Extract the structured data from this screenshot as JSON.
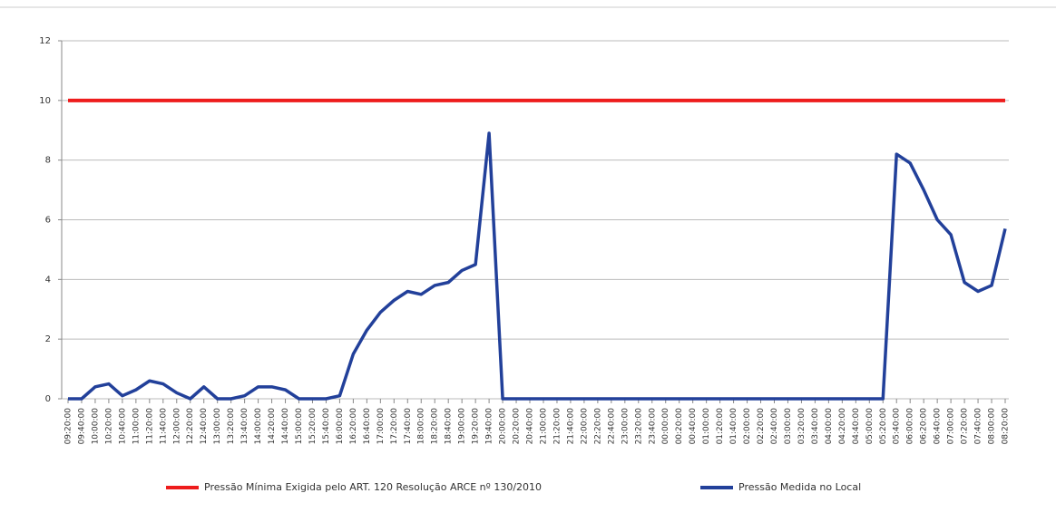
{
  "chart_data": {
    "type": "line",
    "categories": [
      "09:20:00",
      "09:40:00",
      "10:00:00",
      "10:20:00",
      "10:40:00",
      "11:00:00",
      "11:20:00",
      "11:40:00",
      "12:00:00",
      "12:20:00",
      "12:40:00",
      "13:00:00",
      "13:20:00",
      "13:40:00",
      "14:00:00",
      "14:20:00",
      "14:40:00",
      "15:00:00",
      "15:20:00",
      "15:40:00",
      "16:00:00",
      "16:20:00",
      "16:40:00",
      "17:00:00",
      "17:20:00",
      "17:40:00",
      "18:00:00",
      "18:20:00",
      "18:40:00",
      "19:00:00",
      "19:20:00",
      "19:40:00",
      "20:00:00",
      "20:20:00",
      "20:40:00",
      "21:00:00",
      "21:20:00",
      "21:40:00",
      "22:00:00",
      "22:20:00",
      "22:40:00",
      "23:00:00",
      "23:20:00",
      "23:40:00",
      "00:00:00",
      "00:20:00",
      "00:40:00",
      "01:00:00",
      "01:20:00",
      "01:40:00",
      "02:00:00",
      "02:20:00",
      "02:40:00",
      "03:00:00",
      "03:20:00",
      "03:40:00",
      "04:00:00",
      "04:20:00",
      "04:40:00",
      "05:00:00",
      "05:20:00",
      "05:40:00",
      "06:00:00",
      "06:20:00",
      "06:40:00",
      "07:00:00",
      "07:20:00",
      "07:40:00",
      "08:00:00",
      "08:20:00"
    ],
    "series": [
      {
        "name": "Pressão Mínima Exigida pelo ART. 120 Resolução ARCE nº 130/2010",
        "color": "#ee1c1c",
        "values": [
          10,
          10,
          10,
          10,
          10,
          10,
          10,
          10,
          10,
          10,
          10,
          10,
          10,
          10,
          10,
          10,
          10,
          10,
          10,
          10,
          10,
          10,
          10,
          10,
          10,
          10,
          10,
          10,
          10,
          10,
          10,
          10,
          10,
          10,
          10,
          10,
          10,
          10,
          10,
          10,
          10,
          10,
          10,
          10,
          10,
          10,
          10,
          10,
          10,
          10,
          10,
          10,
          10,
          10,
          10,
          10,
          10,
          10,
          10,
          10,
          10,
          10,
          10,
          10,
          10,
          10,
          10,
          10,
          10,
          10
        ]
      },
      {
        "name": "Pressão Medida no Local",
        "color": "#22409a",
        "values": [
          0,
          0,
          0.4,
          0.5,
          0.1,
          0.3,
          0.6,
          0.5,
          0.2,
          0,
          0.4,
          0,
          0,
          0.1,
          0.4,
          0.4,
          0.3,
          0,
          0,
          0,
          0.1,
          1.5,
          2.3,
          2.9,
          3.3,
          3.6,
          3.5,
          3.8,
          3.9,
          4.3,
          4.5,
          8.9,
          0,
          0,
          0,
          0,
          0,
          0,
          0,
          0,
          0,
          0,
          0,
          0,
          0,
          0,
          0,
          0,
          0,
          0,
          0,
          0,
          0,
          0,
          0,
          0,
          0,
          0,
          0,
          0,
          0,
          8.2,
          7.9,
          7.0,
          6.0,
          5.5,
          3.9,
          3.6,
          3.8,
          5.7
        ]
      }
    ],
    "ylim": [
      0,
      12
    ],
    "yticks": [
      0,
      2,
      4,
      6,
      8,
      10,
      12
    ],
    "grid": true
  }
}
